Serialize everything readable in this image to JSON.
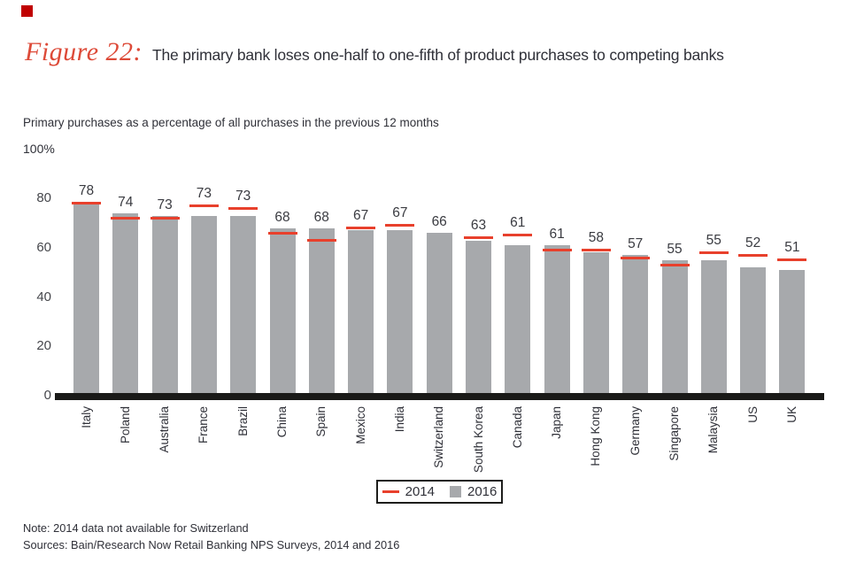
{
  "page": {
    "figure_label": "Figure 22:",
    "title": "The primary bank loses one-half to one-fifth of product purchases to competing banks",
    "subtitle": "Primary purchases as a percentage of all purchases in the previous 12 months",
    "axis_max_label": "100%",
    "note": "Note: 2014 data not available for Switzerland",
    "sources": "Sources: Bain/Research Now Retail Banking NPS Surveys, 2014 and 2016"
  },
  "legend": {
    "items": [
      {
        "label": "2014",
        "marker": "line",
        "color": "#e8402c"
      },
      {
        "label": "2016",
        "marker": "square",
        "color": "#a7a9ac"
      }
    ]
  },
  "colors": {
    "bar_2016": "#a7a9ac",
    "tick_2014": "#e8402c",
    "figure_label_red": "#dd4a38",
    "brand_red": "#c00000",
    "axis_black": "#1a1a18",
    "text_dark": "#2f3038"
  },
  "chart_data": {
    "type": "bar",
    "title": "The primary bank loses one-half to one-fifth of product purchases to competing banks",
    "subtitle": "Primary purchases as a percentage of all purchases in the previous 12 months",
    "categories": [
      "Italy",
      "Poland",
      "Australia",
      "France",
      "Brazil",
      "China",
      "Spain",
      "Mexico",
      "India",
      "Switzerland",
      "South Korea",
      "Canada",
      "Japan",
      "Hong Kong",
      "Germany",
      "Singapore",
      "Malaysia",
      "US",
      "UK"
    ],
    "series": [
      {
        "name": "2014",
        "style": "tick",
        "color": "#e8402c",
        "values": [
          78,
          72,
          72,
          77,
          76,
          66,
          63,
          68,
          69,
          null,
          64,
          65,
          59,
          59,
          56,
          53,
          58,
          57,
          55
        ],
        "values_note": "unlabeled in figure; estimated from tick positions"
      },
      {
        "name": "2016",
        "style": "bar",
        "color": "#a7a9ac",
        "values": [
          78,
          74,
          73,
          73,
          73,
          68,
          68,
          67,
          67,
          66,
          63,
          61,
          61,
          58,
          57,
          55,
          55,
          52,
          51
        ],
        "labeled": true
      }
    ],
    "value_labels_series": "2016",
    "yticks": [
      0,
      20,
      40,
      60,
      80
    ],
    "ylim": [
      0,
      100
    ],
    "axis_max_label": "100%",
    "grid": false,
    "legend_position": "bottom-center",
    "xlabel": "",
    "ylabel": ""
  }
}
